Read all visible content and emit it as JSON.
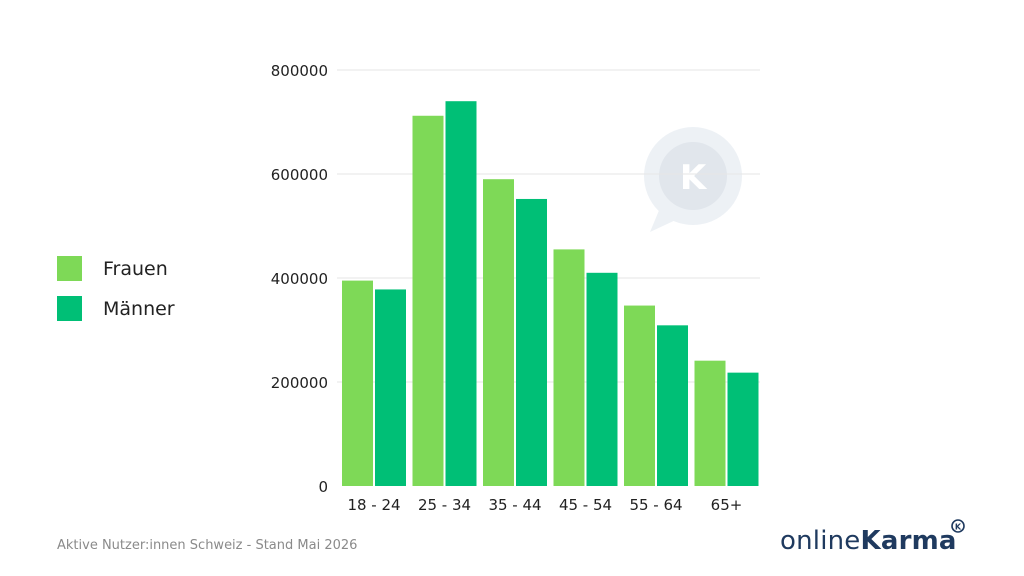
{
  "chart_data": {
    "type": "bar",
    "categories": [
      "18 - 24",
      "25 - 34",
      "35 - 44",
      "45 - 54",
      "55 - 64",
      "65+"
    ],
    "series": [
      {
        "name": "Frauen",
        "values": [
          395000,
          712000,
          590000,
          455000,
          347000,
          241000
        ],
        "color": "#7ed957"
      },
      {
        "name": "Männer",
        "values": [
          378000,
          740000,
          552000,
          410000,
          309000,
          218000
        ],
        "color": "#00bf76"
      }
    ],
    "yticks": [
      "800000",
      "600000",
      "400000",
      "200000",
      "0"
    ],
    "ylim": [
      0,
      800000
    ],
    "grid": true,
    "legend_position": "left"
  },
  "footnote": "Aktive Nutzer:innen Schweiz - Stand Mai 2026",
  "brand": {
    "prefix": "online",
    "strong": "Karma"
  },
  "watermark_icon": "chat-bubble-k-icon",
  "badge_icon": "brand-badge-icon"
}
